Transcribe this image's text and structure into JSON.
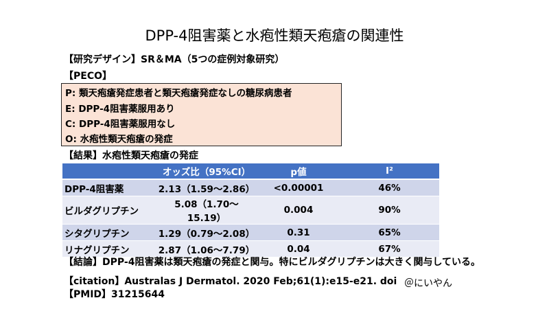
{
  "title": "DPP-4阻害薬と水疱性類天疱瘡の関連性",
  "design": "【研究デザイン】SR＆MA（5つの症例対象研究）",
  "peco_heading": "【PECO】",
  "peco": [
    "P: 類天疱瘡発症患者と類天疱瘡発症なしの糖尿病患者",
    "E: DPP-4阻害薬服用あり",
    "C: DPP-4阻害薬服用なし",
    "O: 水疱性類天疱瘡の発症"
  ],
  "result_heading": "【結果】水疱性類天疱瘡の発症",
  "table": {
    "headers": [
      "",
      "オッズ比（95%CI）",
      "p値",
      "I²"
    ],
    "rows": [
      [
        "DPP-4阻害薬",
        "2.13（1.59～2.86）",
        "<0.00001",
        "46%"
      ],
      [
        "ビルダグリプチン",
        "5.08（1.70～15.19）",
        "0.004",
        "90%"
      ],
      [
        "シタグリプチン",
        "1.29（0.79～2.08）",
        "0.31",
        "65%"
      ],
      [
        "リナグリプチン",
        "2.87（1.06～7.79）",
        "0.04",
        "67%"
      ]
    ]
  },
  "conclusion": "【結論】DPP-4阻害薬は類天疱瘡の発症と関与。特にビルダグリプチンは大きく関与している。",
  "citation": "【citation】Australas J Dermatol. 2020 Feb;61(1):e15-e21. doi",
  "pmid": "【PMID】31215644",
  "handle": "＠にいやん"
}
